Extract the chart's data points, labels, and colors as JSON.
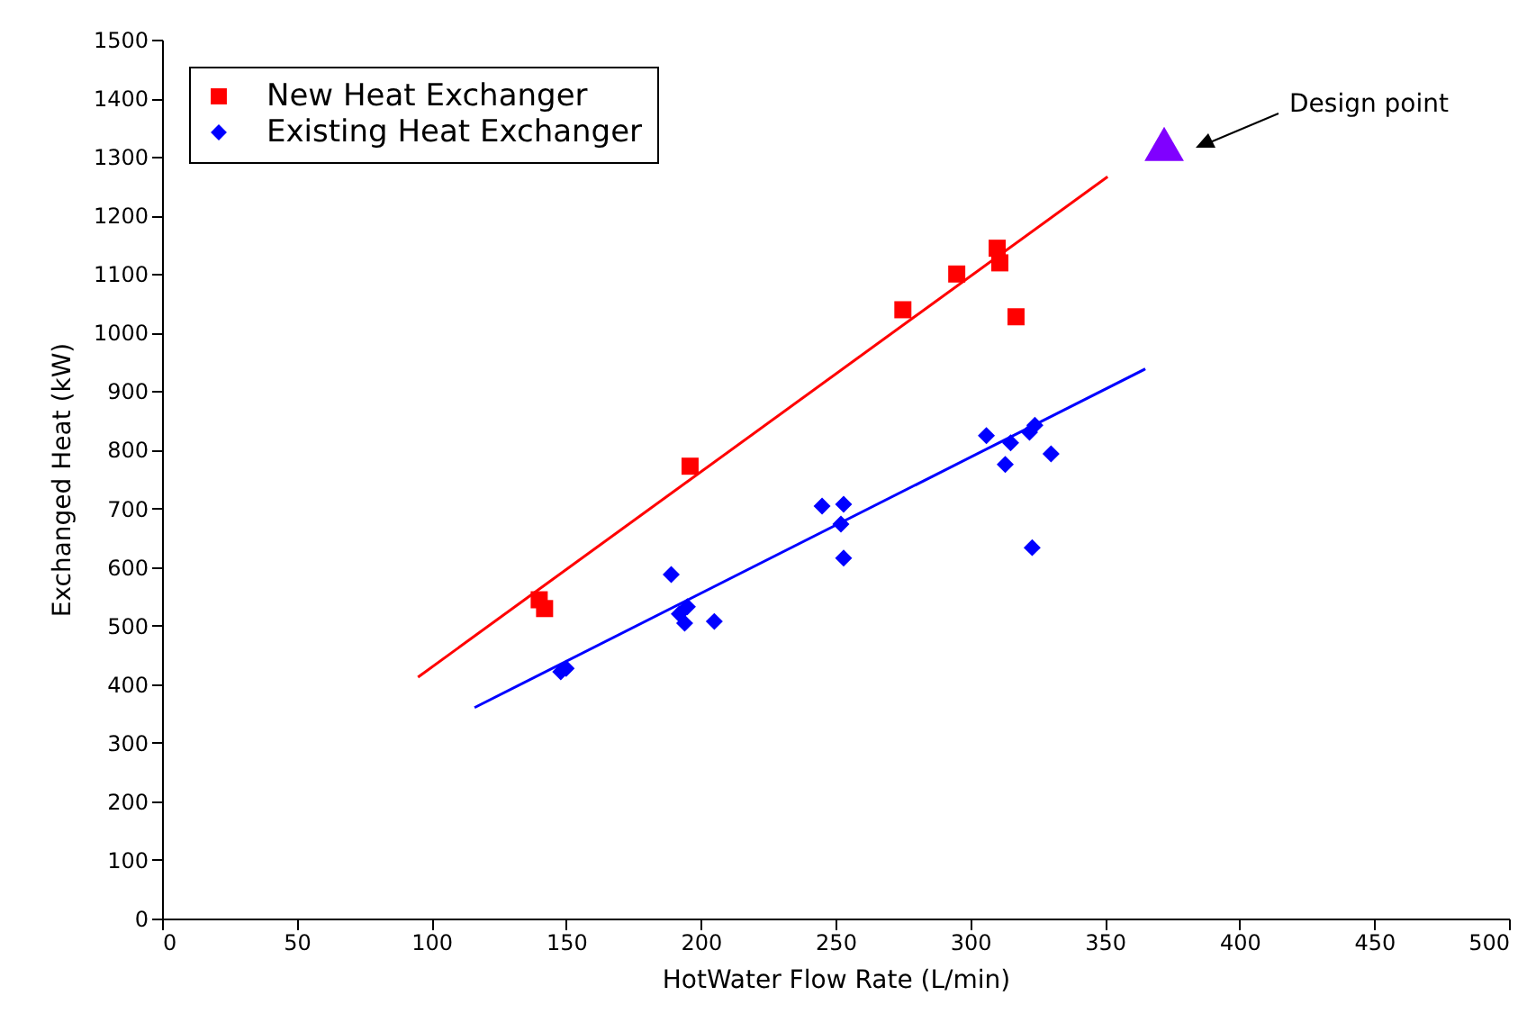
{
  "chart_data": {
    "type": "scatter",
    "xlabel": "HotWater Flow Rate (L/min)",
    "ylabel": "Exchanged Heat  (kW)",
    "xlim": [
      0,
      500
    ],
    "xticks": [
      0,
      50,
      100,
      150,
      200,
      250,
      300,
      350,
      400,
      450,
      500
    ],
    "ylim": [
      0,
      1500
    ],
    "yticks": [
      0,
      100,
      200,
      300,
      400,
      500,
      600,
      700,
      800,
      900,
      1000,
      1100,
      1200,
      1300,
      1400,
      1500
    ],
    "grid": false,
    "legend": "top left",
    "annotations": [
      "Design point"
    ],
    "series": [
      {
        "name": "New Heat Exchanger",
        "marker": "square",
        "color": "#ff0000",
        "x": [
          140,
          142,
          196,
          275,
          295,
          310,
          311,
          317
        ],
        "values": [
          544,
          529,
          772,
          1039,
          1100,
          1144,
          1119,
          1027
        ]
      },
      {
        "name": "Existing Heat Exchanger",
        "marker": "diamond",
        "color": "#0000ff",
        "x": [
          148,
          150,
          189,
          192,
          194,
          195,
          205,
          245,
          253,
          252,
          253,
          306,
          315,
          313,
          322,
          324,
          330,
          323
        ],
        "values": [
          421,
          427,
          587,
          520,
          504,
          532,
          507,
          704,
          707,
          673,
          615,
          824,
          812,
          775,
          830,
          842,
          793,
          633
        ]
      },
      {
        "type": "line",
        "color": "#ff0000",
        "x": [
          95,
          351
        ],
        "values": [
          412,
          1266
        ]
      },
      {
        "type": "line",
        "color": "#0000ff",
        "x": [
          116,
          365
        ],
        "values": [
          360,
          938
        ]
      },
      {
        "type": "scatter",
        "marker": "triangle",
        "color": "#8000ff",
        "x": [
          372
        ],
        "values": [
          1322
        ]
      }
    ]
  }
}
